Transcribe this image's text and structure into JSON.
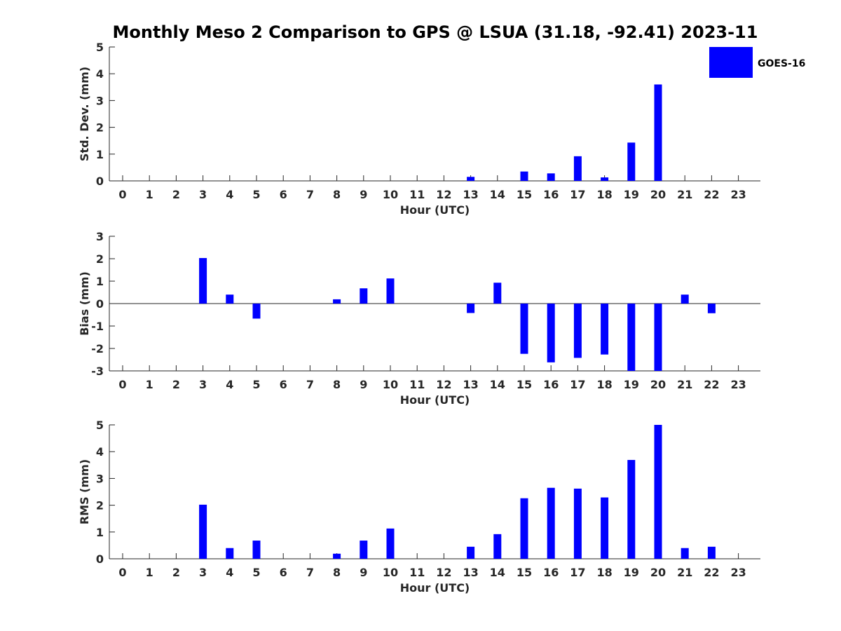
{
  "chart_data": {
    "title": "Monthly Meso 2 Comparison to GPS @ LSUA (31.18, -92.41) 2023-11",
    "legend": {
      "label": "GOES-16",
      "color": "#0000ff",
      "placement": "top-right"
    },
    "bar_color": "#0000ff",
    "panels": [
      {
        "type": "bar",
        "xlabel": "Hour (UTC)",
        "ylabel": "Std. Dev. (mm)",
        "ylim": [
          0,
          5
        ],
        "yticks": [
          0,
          1,
          2,
          3,
          4,
          5
        ],
        "categories": [
          "0",
          "1",
          "2",
          "3",
          "4",
          "5",
          "6",
          "7",
          "8",
          "9",
          "10",
          "11",
          "12",
          "13",
          "14",
          "15",
          "16",
          "17",
          "18",
          "19",
          "20",
          "21",
          "22",
          "23"
        ],
        "values": [
          null,
          null,
          null,
          0,
          0,
          0,
          null,
          null,
          0,
          0,
          0,
          null,
          null,
          0.15,
          0,
          0.35,
          0.28,
          0.92,
          0.13,
          1.43,
          3.6,
          0,
          0,
          null
        ]
      },
      {
        "type": "bar",
        "xlabel": "Hour (UTC)",
        "ylabel": "Bias (mm)",
        "ylim": [
          -3,
          3
        ],
        "yticks": [
          -3,
          -2,
          -1,
          0,
          1,
          2,
          3
        ],
        "zero_line": true,
        "categories": [
          "0",
          "1",
          "2",
          "3",
          "4",
          "5",
          "6",
          "7",
          "8",
          "9",
          "10",
          "11",
          "12",
          "13",
          "14",
          "15",
          "16",
          "17",
          "18",
          "19",
          "20",
          "21",
          "22",
          "23"
        ],
        "values": [
          null,
          null,
          null,
          2.03,
          0.4,
          -0.67,
          null,
          null,
          0.19,
          0.68,
          1.12,
          null,
          null,
          -0.42,
          0.93,
          -2.24,
          -2.62,
          -2.42,
          -2.27,
          -3.0,
          -3.0,
          0.4,
          -0.43,
          null
        ]
      },
      {
        "type": "bar",
        "xlabel": "Hour (UTC)",
        "ylabel": "RMS (mm)",
        "ylim": [
          0,
          5
        ],
        "yticks": [
          0,
          1,
          2,
          3,
          4,
          5
        ],
        "categories": [
          "0",
          "1",
          "2",
          "3",
          "4",
          "5",
          "6",
          "7",
          "8",
          "9",
          "10",
          "11",
          "12",
          "13",
          "14",
          "15",
          "16",
          "17",
          "18",
          "19",
          "20",
          "21",
          "22",
          "23"
        ],
        "values": [
          null,
          null,
          null,
          2.02,
          0.4,
          0.68,
          null,
          null,
          0.19,
          0.68,
          1.13,
          null,
          null,
          0.45,
          0.92,
          2.26,
          2.65,
          2.62,
          2.29,
          3.69,
          5.0,
          0.4,
          0.45,
          null
        ]
      }
    ]
  }
}
